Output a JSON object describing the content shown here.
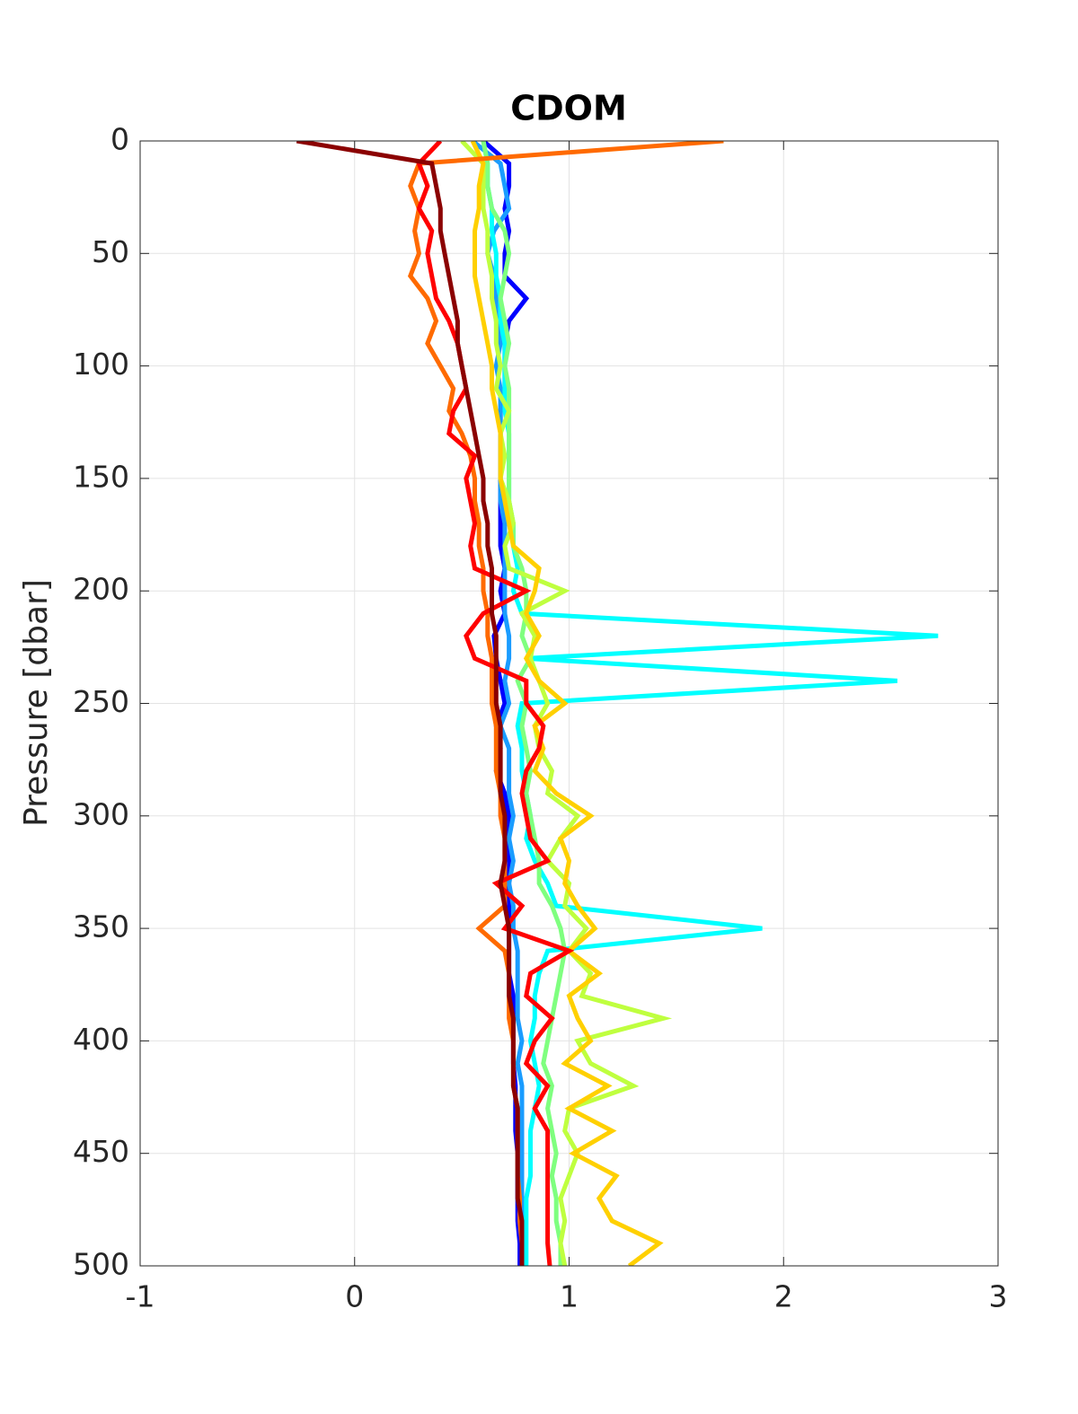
{
  "chart_data": {
    "type": "line",
    "title": "CDOM",
    "ylabel": "Pressure [dbar]",
    "xlim": [
      -1,
      3
    ],
    "xticks": [
      -1,
      0,
      1,
      2,
      3
    ],
    "ylim": [
      0,
      500
    ],
    "yticks": [
      0,
      50,
      100,
      150,
      200,
      250,
      300,
      350,
      400,
      450,
      500
    ],
    "yreverse": true,
    "grid": true,
    "y": [
      0,
      10,
      20,
      30,
      40,
      50,
      60,
      70,
      80,
      90,
      100,
      110,
      120,
      130,
      140,
      150,
      160,
      170,
      180,
      190,
      200,
      210,
      220,
      230,
      240,
      250,
      260,
      270,
      280,
      290,
      300,
      310,
      320,
      330,
      340,
      350,
      360,
      370,
      380,
      390,
      400,
      410,
      420,
      430,
      440,
      450,
      460,
      470,
      480,
      490,
      500
    ],
    "series": [
      {
        "color": "#0000ff",
        "values": [
          0.6,
          0.72,
          0.72,
          0.7,
          0.72,
          0.7,
          0.7,
          0.8,
          0.72,
          0.7,
          0.7,
          0.7,
          0.68,
          0.68,
          0.68,
          0.68,
          0.68,
          0.68,
          0.68,
          0.7,
          0.68,
          0.7,
          0.65,
          0.66,
          0.68,
          0.7,
          0.66,
          0.68,
          0.66,
          0.7,
          0.72,
          0.72,
          0.72,
          0.72,
          0.72,
          0.72,
          0.72,
          0.72,
          0.74,
          0.74,
          0.74,
          0.74,
          0.75,
          0.75,
          0.75,
          0.76,
          0.76,
          0.76,
          0.76,
          0.77,
          0.77
        ]
      },
      {
        "color": "#1a9cff",
        "values": [
          0.55,
          0.68,
          0.7,
          0.72,
          0.65,
          0.62,
          0.65,
          0.66,
          0.66,
          0.68,
          0.66,
          0.68,
          0.68,
          0.68,
          0.68,
          0.68,
          0.68,
          0.7,
          0.7,
          0.7,
          0.7,
          0.7,
          0.72,
          0.72,
          0.7,
          0.72,
          0.68,
          0.72,
          0.72,
          0.72,
          0.74,
          0.72,
          0.74,
          0.72,
          0.74,
          0.74,
          0.76,
          0.76,
          0.76,
          0.76,
          0.78,
          0.76,
          0.78,
          0.78,
          0.78,
          0.78,
          0.78,
          0.78,
          0.78,
          0.78,
          0.78
        ]
      },
      {
        "color": "#00ffff",
        "values": [
          0.6,
          0.62,
          0.62,
          0.64,
          0.64,
          0.66,
          0.66,
          0.68,
          0.68,
          0.7,
          0.7,
          0.7,
          0.7,
          0.72,
          0.72,
          0.72,
          0.72,
          0.74,
          0.74,
          0.76,
          0.74,
          0.78,
          2.72,
          0.8,
          2.53,
          0.78,
          0.76,
          0.78,
          0.78,
          0.8,
          0.82,
          0.8,
          0.84,
          0.9,
          0.94,
          1.9,
          0.9,
          0.86,
          0.84,
          0.84,
          0.82,
          0.84,
          0.86,
          0.84,
          0.82,
          0.82,
          0.82,
          0.8,
          0.8,
          0.8,
          0.8
        ]
      },
      {
        "color": "#7fff7f",
        "values": [
          0.6,
          0.62,
          0.62,
          0.64,
          0.7,
          0.72,
          0.7,
          0.68,
          0.7,
          0.72,
          0.7,
          0.72,
          0.72,
          0.72,
          0.72,
          0.72,
          0.72,
          0.74,
          0.74,
          0.78,
          0.8,
          0.8,
          0.78,
          0.82,
          0.76,
          0.8,
          0.78,
          0.8,
          0.82,
          0.8,
          0.82,
          0.84,
          0.86,
          0.86,
          0.92,
          0.96,
          0.98,
          0.96,
          0.94,
          0.92,
          0.9,
          0.88,
          0.92,
          0.9,
          0.92,
          0.94,
          0.92,
          0.94,
          0.94,
          0.96,
          0.96
        ]
      },
      {
        "color": "#bfff3f",
        "values": [
          0.5,
          0.6,
          0.6,
          0.6,
          0.62,
          0.62,
          0.64,
          0.64,
          0.66,
          0.66,
          0.68,
          0.66,
          0.72,
          0.68,
          0.7,
          0.68,
          0.72,
          0.74,
          0.7,
          0.72,
          0.98,
          0.78,
          0.84,
          0.82,
          0.86,
          0.9,
          0.84,
          0.86,
          0.92,
          0.9,
          1.04,
          0.96,
          0.9,
          1.0,
          0.98,
          1.08,
          1.0,
          1.1,
          1.06,
          1.44,
          1.04,
          1.1,
          1.3,
          1.0,
          0.98,
          1.04,
          1.0,
          0.96,
          0.98,
          0.96,
          0.98
        ]
      },
      {
        "color": "#ffd000",
        "values": [
          0.55,
          0.6,
          0.58,
          0.58,
          0.56,
          0.56,
          0.56,
          0.58,
          0.6,
          0.62,
          0.64,
          0.64,
          0.66,
          0.68,
          0.68,
          0.68,
          0.7,
          0.72,
          0.74,
          0.86,
          0.84,
          0.8,
          0.86,
          0.8,
          0.86,
          0.98,
          0.84,
          0.88,
          0.84,
          0.94,
          1.1,
          0.96,
          1.0,
          0.98,
          1.04,
          1.12,
          1.0,
          1.14,
          1.0,
          1.04,
          1.1,
          0.98,
          1.18,
          1.0,
          1.2,
          1.02,
          1.22,
          1.14,
          1.2,
          1.42,
          1.28
        ]
      },
      {
        "color": "#ff6a00",
        "values": [
          1.72,
          0.3,
          0.26,
          0.3,
          0.28,
          0.3,
          0.26,
          0.34,
          0.38,
          0.34,
          0.4,
          0.46,
          0.44,
          0.5,
          0.54,
          0.56,
          0.56,
          0.58,
          0.58,
          0.6,
          0.6,
          0.62,
          0.62,
          0.64,
          0.64,
          0.64,
          0.66,
          0.66,
          0.66,
          0.68,
          0.68,
          0.7,
          0.7,
          0.7,
          0.7,
          0.58,
          0.7,
          0.72,
          0.72,
          0.72,
          0.74,
          0.74,
          0.74,
          0.76,
          0.76,
          0.76,
          0.76,
          0.77,
          0.77,
          0.78,
          0.78
        ]
      },
      {
        "color": "#ff0000",
        "values": [
          0.4,
          0.3,
          0.34,
          0.3,
          0.36,
          0.34,
          0.36,
          0.38,
          0.44,
          0.48,
          0.5,
          0.52,
          0.46,
          0.44,
          0.56,
          0.52,
          0.54,
          0.56,
          0.54,
          0.56,
          0.8,
          0.6,
          0.52,
          0.56,
          0.8,
          0.8,
          0.88,
          0.86,
          0.8,
          0.78,
          0.8,
          0.82,
          0.9,
          0.66,
          0.78,
          0.7,
          1.0,
          0.82,
          0.8,
          0.92,
          0.84,
          0.8,
          0.9,
          0.84,
          0.9,
          0.9,
          0.9,
          0.9,
          0.9,
          0.9,
          0.91
        ]
      },
      {
        "color": "#8b0000",
        "values": [
          -0.27,
          0.36,
          0.38,
          0.4,
          0.4,
          0.42,
          0.44,
          0.46,
          0.48,
          0.48,
          0.5,
          0.52,
          0.54,
          0.56,
          0.58,
          0.6,
          0.6,
          0.62,
          0.62,
          0.64,
          0.64,
          0.64,
          0.66,
          0.66,
          0.66,
          0.66,
          0.68,
          0.68,
          0.68,
          0.68,
          0.7,
          0.7,
          0.7,
          0.68,
          0.7,
          0.72,
          0.72,
          0.72,
          0.72,
          0.74,
          0.74,
          0.74,
          0.74,
          0.76,
          0.76,
          0.76,
          0.76,
          0.76,
          0.78,
          0.78,
          0.78
        ]
      }
    ]
  }
}
